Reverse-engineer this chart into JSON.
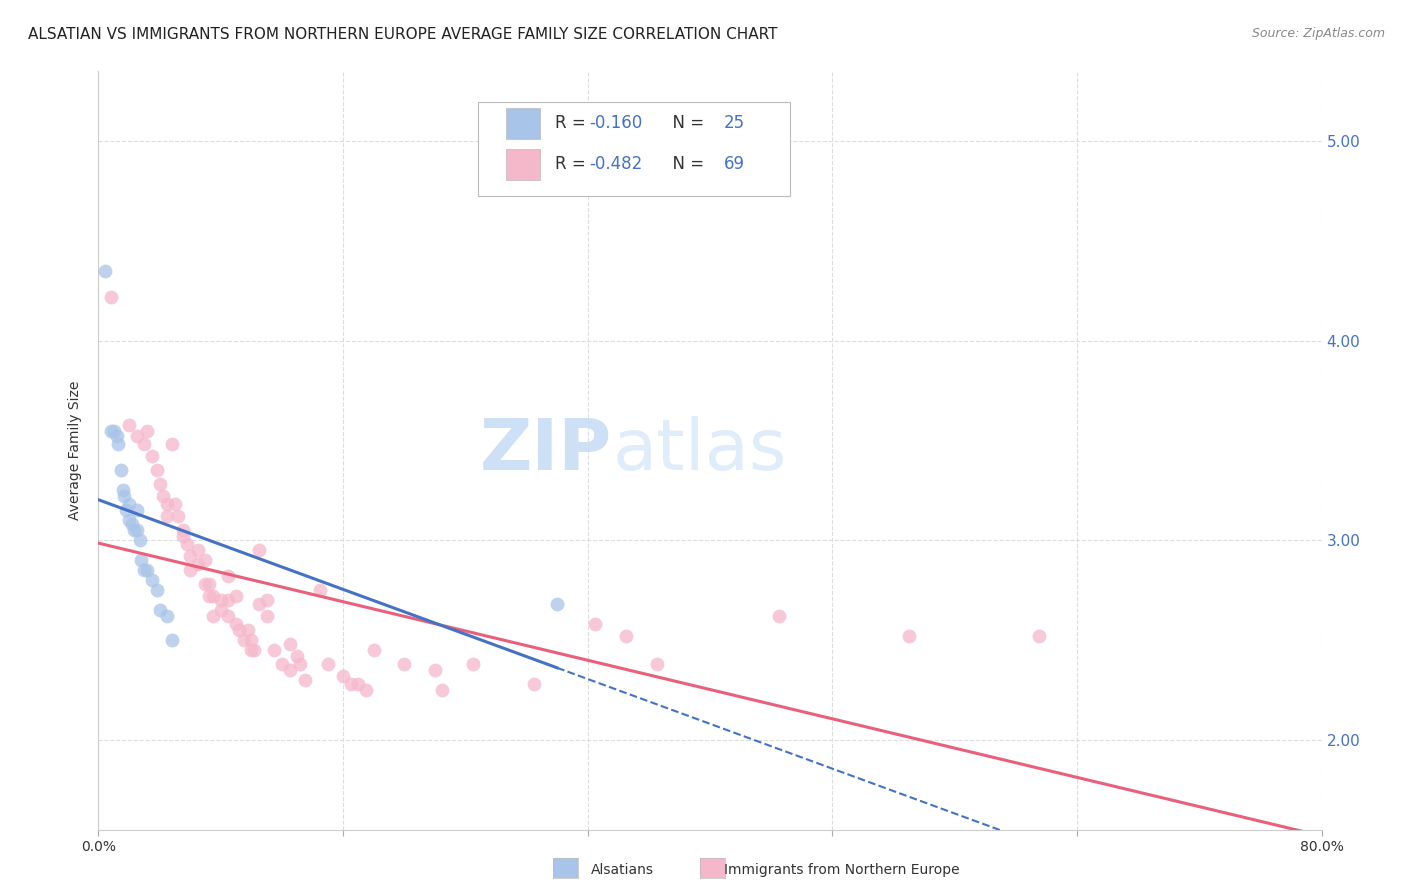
{
  "title": "ALSATIAN VS IMMIGRANTS FROM NORTHERN EUROPE AVERAGE FAMILY SIZE CORRELATION CHART",
  "source": "Source: ZipAtlas.com",
  "ylabel": "Average Family Size",
  "yticks_right": [
    2.0,
    3.0,
    4.0,
    5.0
  ],
  "blue_color": "#a8c4e8",
  "pink_color": "#f5b8cb",
  "blue_line_color": "#4472c4",
  "pink_line_color": "#e8607a",
  "blue_scatter": [
    [
      0.4,
      4.35
    ],
    [
      0.8,
      3.55
    ],
    [
      1.0,
      3.55
    ],
    [
      1.2,
      3.52
    ],
    [
      1.3,
      3.48
    ],
    [
      1.5,
      3.35
    ],
    [
      1.6,
      3.25
    ],
    [
      1.7,
      3.22
    ],
    [
      1.8,
      3.15
    ],
    [
      2.0,
      3.18
    ],
    [
      2.0,
      3.1
    ],
    [
      2.2,
      3.08
    ],
    [
      2.3,
      3.05
    ],
    [
      2.5,
      3.15
    ],
    [
      2.5,
      3.05
    ],
    [
      2.7,
      3.0
    ],
    [
      2.8,
      2.9
    ],
    [
      3.0,
      2.85
    ],
    [
      3.2,
      2.85
    ],
    [
      3.5,
      2.8
    ],
    [
      3.8,
      2.75
    ],
    [
      4.0,
      2.65
    ],
    [
      4.5,
      2.62
    ],
    [
      4.8,
      2.5
    ],
    [
      30.0,
      2.68
    ]
  ],
  "pink_scatter": [
    [
      0.8,
      4.22
    ],
    [
      2.0,
      3.58
    ],
    [
      2.5,
      3.52
    ],
    [
      3.0,
      3.48
    ],
    [
      3.2,
      3.55
    ],
    [
      3.5,
      3.42
    ],
    [
      3.8,
      3.35
    ],
    [
      4.0,
      3.28
    ],
    [
      4.2,
      3.22
    ],
    [
      4.5,
      3.18
    ],
    [
      4.5,
      3.12
    ],
    [
      4.8,
      3.48
    ],
    [
      5.0,
      3.18
    ],
    [
      5.2,
      3.12
    ],
    [
      5.5,
      3.05
    ],
    [
      5.5,
      3.02
    ],
    [
      5.8,
      2.98
    ],
    [
      6.0,
      2.92
    ],
    [
      6.0,
      2.85
    ],
    [
      6.5,
      2.95
    ],
    [
      6.5,
      2.88
    ],
    [
      7.0,
      2.9
    ],
    [
      7.0,
      2.78
    ],
    [
      7.2,
      2.78
    ],
    [
      7.2,
      2.72
    ],
    [
      7.5,
      2.72
    ],
    [
      7.5,
      2.62
    ],
    [
      8.0,
      2.7
    ],
    [
      8.0,
      2.65
    ],
    [
      8.5,
      2.82
    ],
    [
      8.5,
      2.7
    ],
    [
      8.5,
      2.62
    ],
    [
      9.0,
      2.72
    ],
    [
      9.0,
      2.58
    ],
    [
      9.2,
      2.55
    ],
    [
      9.5,
      2.5
    ],
    [
      9.8,
      2.55
    ],
    [
      10.0,
      2.5
    ],
    [
      10.0,
      2.45
    ],
    [
      10.2,
      2.45
    ],
    [
      10.5,
      2.95
    ],
    [
      10.5,
      2.68
    ],
    [
      11.0,
      2.7
    ],
    [
      11.0,
      2.62
    ],
    [
      11.5,
      2.45
    ],
    [
      12.0,
      2.38
    ],
    [
      12.5,
      2.48
    ],
    [
      12.5,
      2.35
    ],
    [
      13.0,
      2.42
    ],
    [
      13.2,
      2.38
    ],
    [
      13.5,
      2.3
    ],
    [
      14.5,
      2.75
    ],
    [
      15.0,
      2.38
    ],
    [
      16.0,
      2.32
    ],
    [
      16.5,
      2.28
    ],
    [
      17.0,
      2.28
    ],
    [
      17.5,
      2.25
    ],
    [
      18.0,
      2.45
    ],
    [
      20.0,
      2.38
    ],
    [
      22.0,
      2.35
    ],
    [
      22.5,
      2.25
    ],
    [
      24.5,
      2.38
    ],
    [
      28.5,
      2.28
    ],
    [
      32.5,
      2.58
    ],
    [
      34.5,
      2.52
    ],
    [
      36.5,
      2.38
    ],
    [
      44.5,
      2.62
    ],
    [
      53.0,
      2.52
    ],
    [
      61.5,
      2.52
    ]
  ],
  "watermark_zip": "ZIP",
  "watermark_atlas": "atlas",
  "xlim": [
    0,
    80
  ],
  "ylim": [
    1.55,
    5.35
  ],
  "xtick_positions": [
    0,
    16,
    32,
    48,
    64,
    80
  ],
  "grid_color": "#dddddd",
  "background_color": "#ffffff",
  "title_fontsize": 11,
  "axis_label_fontsize": 10,
  "tick_fontsize": 10
}
